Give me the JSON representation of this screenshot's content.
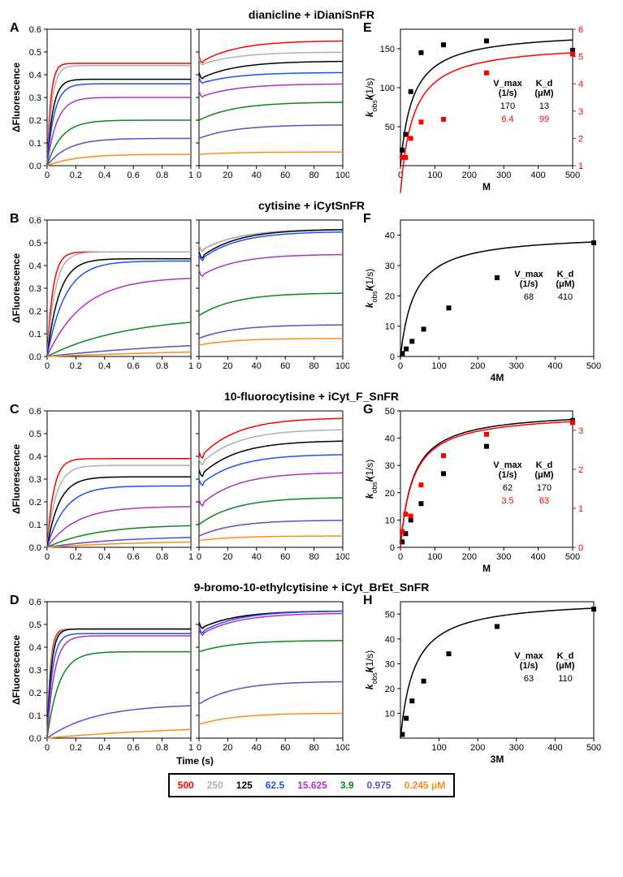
{
  "legend": {
    "items": [
      {
        "label": "500",
        "color": "#ff0000"
      },
      {
        "label": "250",
        "color": "#b0b0b0"
      },
      {
        "label": "125",
        "color": "#000000"
      },
      {
        "label": "62.5",
        "color": "#1f4fff"
      },
      {
        "label": "15.625",
        "color": "#b030c0"
      },
      {
        "label": "3.9",
        "color": "#0a8a1a"
      },
      {
        "label": "0.975",
        "color": "#5a4fcf"
      },
      {
        "label": "0.245 μM",
        "color": "#ff8a1a"
      }
    ]
  },
  "rows": [
    {
      "title": "dianicline + iDianiSnFR",
      "left_label": "A",
      "right_label": "E",
      "kinetic": {
        "ylim": [
          0,
          0.6
        ],
        "yticks": [
          0.0,
          0.1,
          0.2,
          0.3,
          0.4,
          0.5,
          0.6
        ],
        "short": {
          "xlim": [
            0,
            1.0
          ],
          "xticks": [
            0.0,
            0.2,
            0.4,
            0.6,
            0.8,
            1.0
          ]
        },
        "long": {
          "xlim": [
            0,
            100
          ],
          "xticks": [
            0,
            20,
            40,
            60,
            80,
            100
          ]
        },
        "plateaus": [
          0.45,
          0.44,
          0.38,
          0.36,
          0.3,
          0.2,
          0.12,
          0.05
        ],
        "long_plateaus": [
          0.55,
          0.5,
          0.46,
          0.41,
          0.36,
          0.28,
          0.18,
          0.06
        ],
        "rise_k": [
          40,
          30,
          25,
          20,
          15,
          10,
          7,
          5
        ]
      },
      "binding": {
        "xlabel": "M",
        "ylabel": "k_obs (1/s)",
        "xlim": [
          0,
          500
        ],
        "xticks": [
          0,
          100,
          200,
          300,
          400,
          500
        ],
        "ylim": [
          0,
          175
        ],
        "yticks": [
          50,
          100,
          150
        ],
        "ylim2": [
          1,
          6
        ],
        "yticks2": [
          1,
          2,
          3,
          4,
          5,
          6
        ],
        "show_right": true,
        "black": {
          "x": [
            5,
            15,
            30,
            60,
            125,
            250,
            500
          ],
          "y": [
            20,
            40,
            95,
            145,
            155,
            160,
            148
          ]
        },
        "red": {
          "x": [
            5,
            15,
            30,
            60,
            125,
            250,
            500
          ],
          "y": [
            1.3,
            1.3,
            2.0,
            2.6,
            2.7,
            4.4,
            5.1
          ]
        },
        "inset": {
          "h1": "V_max",
          "h2": "K_d",
          "u1": "(1/s)",
          "u2": "(μM)",
          "r1": [
            "170",
            "13"
          ],
          "r2": [
            "6.4",
            "99"
          ]
        }
      }
    },
    {
      "title": "cytisine + iCytSnFR",
      "left_label": "B",
      "right_label": "F",
      "kinetic": {
        "ylim": [
          0,
          0.6
        ],
        "yticks": [
          0.0,
          0.1,
          0.2,
          0.3,
          0.4,
          0.5,
          0.6
        ],
        "short": {
          "xlim": [
            0,
            1.0
          ],
          "xticks": [
            0.0,
            0.2,
            0.4,
            0.6,
            0.8,
            1.0
          ]
        },
        "long": {
          "xlim": [
            0,
            100
          ],
          "xticks": [
            0,
            20,
            40,
            60,
            80,
            100
          ]
        },
        "plateaus": [
          0.46,
          0.46,
          0.43,
          0.42,
          0.35,
          0.18,
          0.08,
          0.05
        ],
        "long_plateaus": [
          0.56,
          0.56,
          0.56,
          0.55,
          0.45,
          0.28,
          0.14,
          0.08
        ],
        "rise_k": [
          25,
          18,
          12,
          8,
          4,
          1.8,
          0.9,
          0.5
        ]
      },
      "binding": {
        "xlabel": "4M",
        "ylabel": "k_obs (1/s)",
        "xlim": [
          0,
          500
        ],
        "xticks": [
          0,
          100,
          200,
          300,
          400,
          500
        ],
        "ylim": [
          0,
          45
        ],
        "yticks": [
          0,
          10,
          20,
          30,
          40
        ],
        "show_right": false,
        "black": {
          "x": [
            5,
            15,
            30,
            60,
            125,
            250,
            500
          ],
          "y": [
            1,
            2.5,
            5,
            9,
            16,
            26,
            37.5
          ]
        },
        "inset": {
          "h1": "V_max",
          "h2": "K_d",
          "u1": "(1/s)",
          "u2": "(μM)",
          "r1": [
            "68",
            "410"
          ]
        }
      }
    },
    {
      "title": "10-fluorocytisine + iCyt_F_SnFR",
      "left_label": "C",
      "right_label": "G",
      "kinetic": {
        "ylim": [
          0,
          0.6
        ],
        "yticks": [
          0.0,
          0.1,
          0.2,
          0.3,
          0.4,
          0.5,
          0.6
        ],
        "short": {
          "xlim": [
            0,
            1.0
          ],
          "xticks": [
            0.0,
            0.2,
            0.4,
            0.6,
            0.8,
            1.0
          ]
        },
        "long": {
          "xlim": [
            0,
            100
          ],
          "xticks": [
            0,
            20,
            40,
            60,
            80,
            100
          ]
        },
        "plateaus": [
          0.39,
          0.36,
          0.31,
          0.27,
          0.18,
          0.1,
          0.05,
          0.03
        ],
        "long_plateaus": [
          0.57,
          0.52,
          0.47,
          0.41,
          0.33,
          0.22,
          0.12,
          0.05
        ],
        "rise_k": [
          22,
          16,
          12,
          8,
          5,
          3,
          2,
          1.5
        ]
      },
      "binding": {
        "xlabel": "M",
        "ylabel": "k_obs (1/s)",
        "xlim": [
          0,
          500
        ],
        "xticks": [
          0,
          100,
          200,
          300,
          400,
          500
        ],
        "ylim": [
          0,
          50
        ],
        "yticks": [
          0,
          10,
          20,
          30,
          40,
          50
        ],
        "ylim2": [
          0,
          3.5
        ],
        "yticks2": [
          0,
          1,
          2,
          3
        ],
        "show_right": true,
        "black": {
          "x": [
            5,
            15,
            30,
            60,
            125,
            250,
            500
          ],
          "y": [
            2,
            5,
            10,
            16,
            27,
            37,
            46.5
          ]
        },
        "red": {
          "x": [
            5,
            15,
            30,
            60,
            125,
            250,
            500
          ],
          "y": [
            0.4,
            0.85,
            0.8,
            1.6,
            2.35,
            2.9,
            3.2
          ]
        },
        "inset": {
          "h1": "V_max",
          "h2": "K_d",
          "u1": "(1/s)",
          "u2": "(μM)",
          "r1": [
            "62",
            "170"
          ],
          "r2": [
            "3.5",
            "63"
          ]
        }
      }
    },
    {
      "title": "9-bromo-10-ethylcytisine + iCyt_BrEt_SnFR",
      "left_label": "D",
      "right_label": "H",
      "kinetic": {
        "ylim": [
          0,
          0.6
        ],
        "yticks": [
          0.0,
          0.1,
          0.2,
          0.3,
          0.4,
          0.5,
          0.6
        ],
        "short": {
          "xlim": [
            0,
            1.0
          ],
          "xticks": [
            0.0,
            0.2,
            0.4,
            0.6,
            0.8,
            1.0
          ]
        },
        "long": {
          "xlim": [
            0,
            100
          ],
          "xticks": [
            0,
            20,
            40,
            60,
            80,
            100
          ]
        },
        "plateaus": [
          0.48,
          0.48,
          0.48,
          0.46,
          0.45,
          0.38,
          0.15,
          0.06
        ],
        "long_plateaus": [
          0.56,
          0.56,
          0.56,
          0.56,
          0.55,
          0.43,
          0.25,
          0.11
        ],
        "rise_k": [
          45,
          40,
          35,
          28,
          20,
          12,
          3,
          1
        ]
      },
      "binding": {
        "xlabel": "3M",
        "ylabel": "k_obs (1/s)",
        "xlim": [
          0,
          500
        ],
        "xticks": [
          100,
          200,
          300,
          400,
          500
        ],
        "ylim": [
          0,
          55
        ],
        "yticks": [
          10,
          20,
          30,
          40,
          50
        ],
        "show_right": false,
        "black": {
          "x": [
            5,
            15,
            30,
            60,
            125,
            250,
            500
          ],
          "y": [
            1.5,
            8,
            15,
            23,
            34,
            45,
            52
          ]
        },
        "inset": {
          "h1": "V_max",
          "h2": "K_d",
          "u1": "(1/s)",
          "u2": "(μM)",
          "r1": [
            "63",
            "110"
          ]
        }
      }
    }
  ],
  "axis_labels": {
    "y": "ΔFluorescence",
    "x": "Time (s)"
  }
}
